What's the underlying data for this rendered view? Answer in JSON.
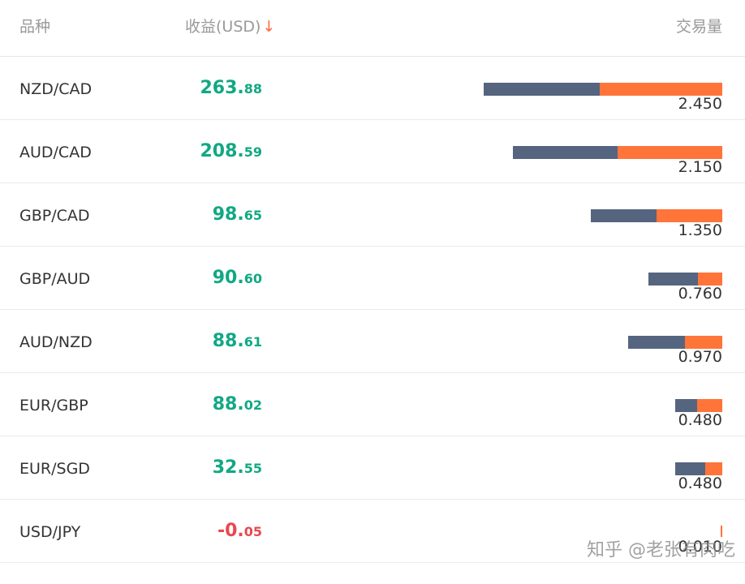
{
  "header": {
    "symbol_label": "品种",
    "profit_label": "收益(USD)",
    "sort_arrow": "↓",
    "volume_label": "交易量"
  },
  "colors": {
    "positive": "#11a883",
    "negative": "#e8484f",
    "bar_primary": "#55657f",
    "bar_secondary": "#ff7439"
  },
  "rows": [
    {
      "symbol": "NZD/CAD",
      "profit_int": "263.",
      "profit_dec": "88",
      "sign": "pos",
      "volume": "2.450",
      "volume_value": 2.45,
      "split": 0.486
    },
    {
      "symbol": "AUD/CAD",
      "profit_int": "208.",
      "profit_dec": "59",
      "sign": "pos",
      "volume": "2.150",
      "volume_value": 2.15,
      "split": 0.5
    },
    {
      "symbol": "GBP/CAD",
      "profit_int": "98.",
      "profit_dec": "65",
      "sign": "pos",
      "volume": "1.350",
      "volume_value": 1.35,
      "split": 0.5
    },
    {
      "symbol": "GBP/AUD",
      "profit_int": "90.",
      "profit_dec": "60",
      "sign": "pos",
      "volume": "0.760",
      "volume_value": 0.76,
      "split": 0.67
    },
    {
      "symbol": "AUD/NZD",
      "profit_int": "88.",
      "profit_dec": "61",
      "sign": "pos",
      "volume": "0.970",
      "volume_value": 0.97,
      "split": 0.6
    },
    {
      "symbol": "EUR/GBP",
      "profit_int": "88.",
      "profit_dec": "02",
      "sign": "pos",
      "volume": "0.480",
      "volume_value": 0.48,
      "split": 0.47
    },
    {
      "symbol": "EUR/SGD",
      "profit_int": "32.",
      "profit_dec": "55",
      "sign": "pos",
      "volume": "0.480",
      "volume_value": 0.48,
      "split": 0.64
    },
    {
      "symbol": "USD/JPY",
      "profit_int": "-0.",
      "profit_dec": "05",
      "sign": "neg",
      "volume": "0.010",
      "volume_value": 0.01,
      "split": 0.0
    }
  ],
  "watermark": "知乎 @老张有肉吃"
}
